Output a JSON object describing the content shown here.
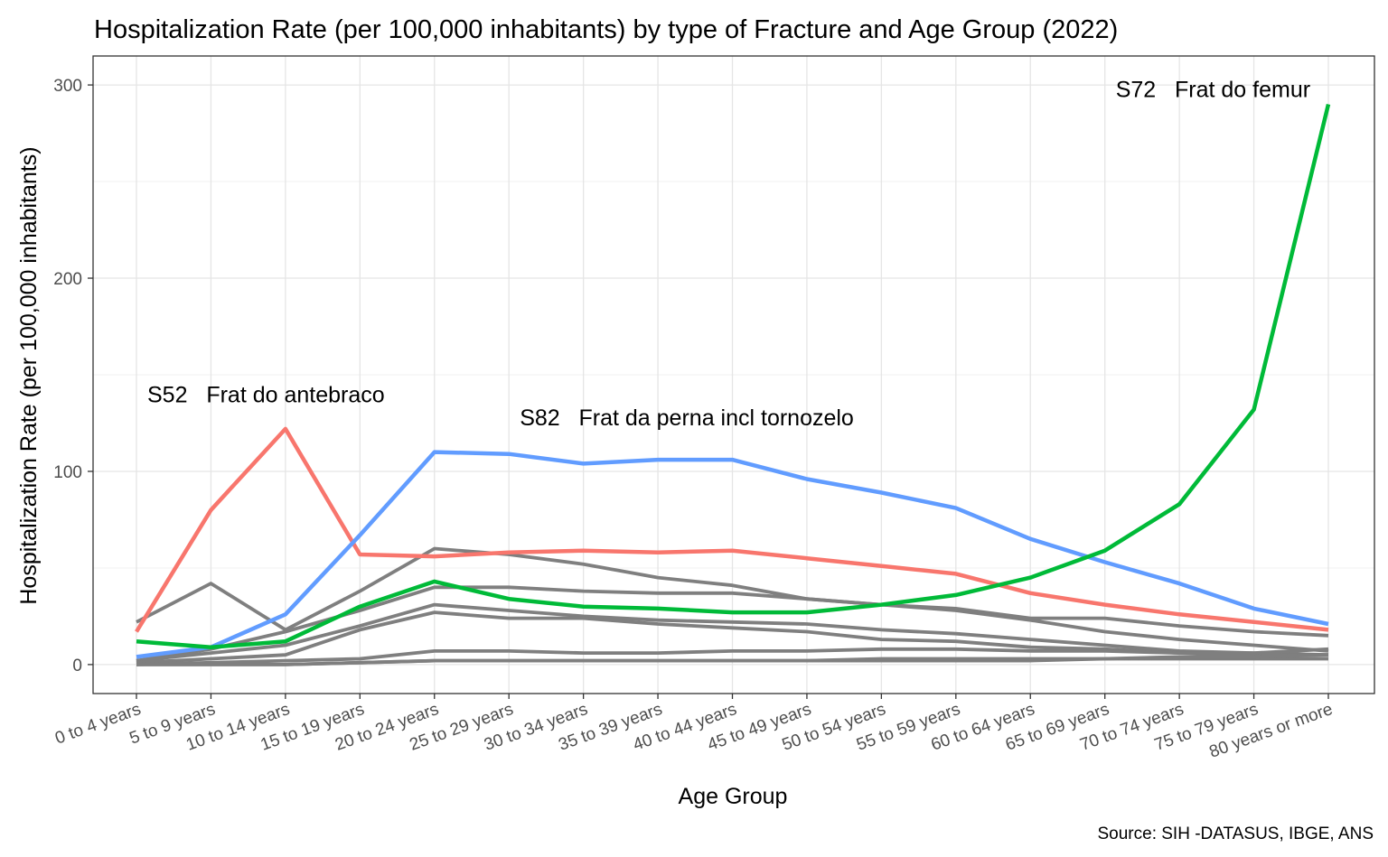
{
  "chart_data": {
    "type": "line",
    "title": "Hospitalization Rate (per 100,000 inhabitants) by type of Fracture and Age Group (2022)",
    "xlabel": "Age Group",
    "ylabel": "Hospitalization Rate (per 100,000 inhabitants)",
    "caption": "Source: SIH -DATASUS, IBGE, ANS",
    "ylim": [
      -15,
      315
    ],
    "yticks": [
      0,
      100,
      200,
      300
    ],
    "grid": true,
    "legend": "none",
    "categories": [
      "0 to 4 years",
      "5 to 9 years",
      "10 to 14 years",
      "15 to 19 years",
      "20 to 24 years",
      "25 to 29 years",
      "30 to 34 years",
      "35 to 39 years",
      "40 to 44 years",
      "45 to 49 years",
      "50 to 54 years",
      "55 to 59 years",
      "60 to 64 years",
      "65 to 69 years",
      "70 to 74 years",
      "75 to 79 years",
      "80 years or more"
    ],
    "series": [
      {
        "color": "#7f7f7f",
        "values": [
          22,
          42,
          18,
          38,
          60,
          57,
          52,
          45,
          41,
          34,
          31,
          28,
          23,
          17,
          13,
          10,
          7
        ]
      },
      {
        "color": "#7f7f7f",
        "values": [
          2,
          8,
          17,
          28,
          40,
          40,
          38,
          37,
          37,
          34,
          31,
          29,
          24,
          24,
          20,
          17,
          15
        ]
      },
      {
        "color": "#7f7f7f",
        "values": [
          2,
          6,
          10,
          20,
          31,
          28,
          25,
          23,
          22,
          21,
          18,
          16,
          13,
          10,
          7,
          6,
          5
        ]
      },
      {
        "color": "#7f7f7f",
        "values": [
          1,
          3,
          5,
          18,
          27,
          24,
          24,
          21,
          19,
          17,
          13,
          12,
          9,
          8,
          6,
          5,
          5
        ]
      },
      {
        "color": "#7f7f7f",
        "values": [
          0,
          1,
          2,
          3,
          7,
          7,
          6,
          6,
          7,
          7,
          8,
          8,
          7,
          7,
          6,
          6,
          8
        ]
      },
      {
        "color": "#7f7f7f",
        "values": [
          0,
          0,
          0,
          1,
          2,
          2,
          2,
          2,
          2,
          2,
          2,
          2,
          2,
          3,
          3,
          3,
          3
        ]
      },
      {
        "color": "#7f7f7f",
        "values": [
          0,
          0,
          0,
          1,
          2,
          2,
          2,
          2,
          2,
          2,
          3,
          3,
          3,
          3,
          4,
          4,
          5
        ]
      },
      {
        "name": "S52   Frat do antebraco",
        "color": "#f8766d",
        "values": [
          17,
          80,
          122,
          57,
          56,
          58,
          59,
          58,
          59,
          55,
          51,
          47,
          37,
          31,
          26,
          22,
          18
        ]
      },
      {
        "name": "S82   Frat da perna incl tornozelo",
        "color": "#619cff",
        "values": [
          4,
          9,
          26,
          67,
          110,
          109,
          104,
          106,
          106,
          96,
          89,
          81,
          65,
          53,
          42,
          29,
          21
        ]
      },
      {
        "name": "S72   Frat do femur",
        "color": "#00ba38",
        "values": [
          12,
          9,
          12,
          30,
          43,
          34,
          30,
          29,
          27,
          27,
          31,
          36,
          45,
          59,
          83,
          132,
          290
        ]
      }
    ],
    "annotations": [
      {
        "text": "S52   Frat do antebraco",
        "x": "0 to 4 years",
        "y": 140
      },
      {
        "text": "S82   Frat da perna incl tornozelo",
        "x": "25 to 29 years",
        "y": 128
      },
      {
        "text": "S72   Frat do femur",
        "x": "65 to 69 years",
        "y": 298
      }
    ]
  }
}
